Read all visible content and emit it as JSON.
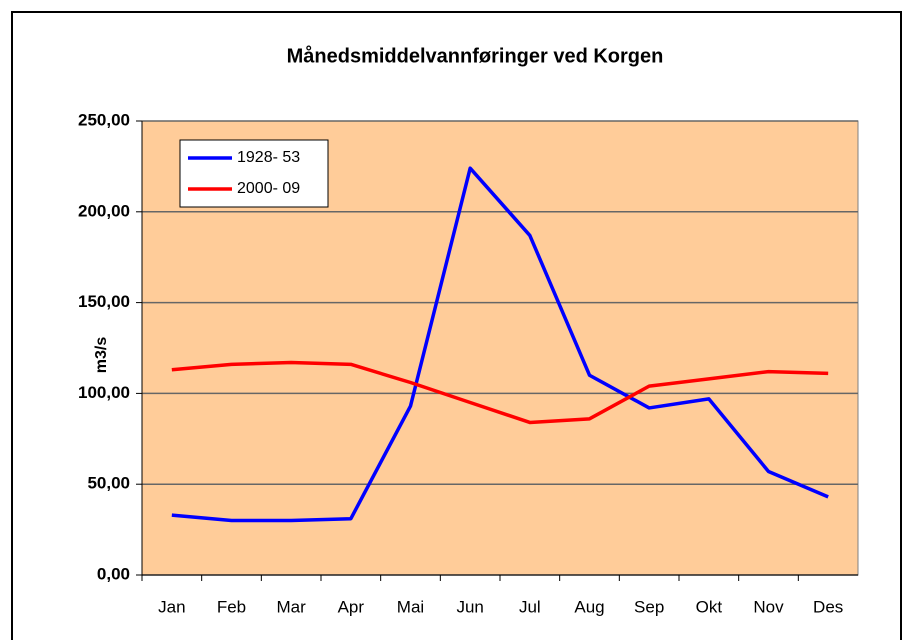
{
  "chart_data": {
    "type": "line",
    "title": "Månedsmiddelvannføringer ved Korgen",
    "y_label": "m3/s",
    "categories": [
      "Jan",
      "Feb",
      "Mar",
      "Apr",
      "Mai",
      "Jun",
      "Jul",
      "Aug",
      "Sep",
      "Okt",
      "Nov",
      "Des"
    ],
    "series": [
      {
        "name": "1928- 53",
        "color": "#0000ff",
        "values": [
          33,
          30,
          30,
          31,
          93,
          224,
          187,
          110,
          92,
          97,
          57,
          43
        ]
      },
      {
        "name": "2000- 09",
        "color": "#ff0000",
        "values": [
          113,
          116,
          117,
          116,
          106,
          95,
          84,
          86,
          104,
          108,
          112,
          111
        ]
      }
    ],
    "ylim": [
      0,
      250
    ],
    "yticks": [
      {
        "value": 0,
        "label": "0,00"
      },
      {
        "value": 50,
        "label": "50,00"
      },
      {
        "value": 100,
        "label": "100,00"
      },
      {
        "value": 150,
        "label": "150,00"
      },
      {
        "value": 200,
        "label": "200,00"
      },
      {
        "value": 250,
        "label": "250,00"
      }
    ],
    "grid": true,
    "legend": "upper left",
    "plot_background": "#ffcc99"
  }
}
